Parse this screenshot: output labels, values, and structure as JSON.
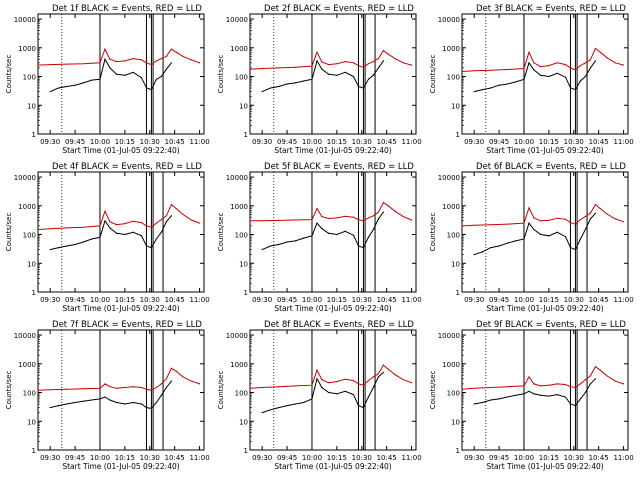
{
  "colors": {
    "events": "#000000",
    "lld": "#cc0000",
    "frame": "#000000"
  },
  "time_axis_ticks": [
    "09:30",
    "09:45",
    "10:00",
    "10:15",
    "10:30",
    "10:45",
    "11:00"
  ],
  "y_axis_ticks": [
    "1",
    "10",
    "100",
    "1000",
    "10000"
  ],
  "chart_data": [
    {
      "type": "line",
      "title": "Det 1f BLACK = Events, RED = LLD",
      "xlabel": "Start Time (01-Jul-05 09:22:40)",
      "ylabel": "Counts/sec",
      "yscale": "log",
      "ylim": [
        1,
        15000
      ],
      "xlim": [
        "09:22:40",
        "11:02:40"
      ],
      "series": [
        {
          "name": "Events",
          "color": "#000000",
          "x": [
            "09:30",
            "09:35",
            "09:40",
            "09:45",
            "09:50",
            "09:55",
            "10:00",
            "10:03",
            "10:06",
            "10:10",
            "10:15",
            "10:20",
            "10:25",
            "10:28",
            "10:31",
            "10:34",
            "10:37",
            "10:40",
            "10:43"
          ],
          "values": [
            30,
            40,
            45,
            50,
            60,
            75,
            80,
            400,
            200,
            120,
            110,
            140,
            90,
            40,
            35,
            80,
            100,
            180,
            300
          ]
        },
        {
          "name": "LLD",
          "color": "#cc0000",
          "x": [
            "09:22:40",
            "09:30",
            "09:40",
            "09:50",
            "10:00",
            "10:03",
            "10:06",
            "10:10",
            "10:15",
            "10:20",
            "10:25",
            "10:28",
            "10:31",
            "10:34",
            "10:37",
            "10:40",
            "10:43",
            "10:46",
            "10:50",
            "10:55",
            "11:00"
          ],
          "values": [
            250,
            260,
            270,
            280,
            300,
            900,
            400,
            330,
            350,
            420,
            380,
            300,
            260,
            350,
            420,
            500,
            900,
            700,
            500,
            380,
            300
          ]
        }
      ]
    },
    {
      "type": "line",
      "title": "Det 2f BLACK = Events, RED = LLD",
      "xlabel": "Start Time (01-Jul-05 09:22:40)",
      "ylabel": "Counts/sec",
      "yscale": "log",
      "ylim": [
        1,
        15000
      ],
      "xlim": [
        "09:22:40",
        "11:02:40"
      ],
      "series": [
        {
          "name": "Events",
          "color": "#000000",
          "x": [
            "09:30",
            "09:35",
            "09:40",
            "09:45",
            "09:50",
            "09:55",
            "10:00",
            "10:03",
            "10:06",
            "10:10",
            "10:15",
            "10:20",
            "10:25",
            "10:28",
            "10:31",
            "10:34",
            "10:37",
            "10:40",
            "10:43"
          ],
          "values": [
            30,
            40,
            45,
            55,
            60,
            70,
            80,
            350,
            180,
            120,
            110,
            140,
            100,
            45,
            40,
            80,
            110,
            200,
            350
          ]
        },
        {
          "name": "LLD",
          "color": "#cc0000",
          "x": [
            "09:22:40",
            "09:30",
            "09:40",
            "09:50",
            "10:00",
            "10:03",
            "10:06",
            "10:10",
            "10:15",
            "10:20",
            "10:25",
            "10:28",
            "10:31",
            "10:34",
            "10:37",
            "10:40",
            "10:43",
            "10:46",
            "10:50",
            "10:55",
            "11:00"
          ],
          "values": [
            180,
            190,
            200,
            210,
            230,
            700,
            320,
            260,
            280,
            330,
            300,
            240,
            210,
            280,
            330,
            420,
            800,
            600,
            420,
            300,
            250
          ]
        }
      ]
    },
    {
      "type": "line",
      "title": "Det 3f BLACK = Events, RED = LLD",
      "xlabel": "Start Time (01-Jul-05 09:22:40)",
      "ylabel": "Counts/sec",
      "yscale": "log",
      "ylim": [
        1,
        15000
      ],
      "xlim": [
        "09:22:40",
        "11:02:40"
      ],
      "series": [
        {
          "name": "Events",
          "color": "#000000",
          "x": [
            "09:30",
            "09:35",
            "09:40",
            "09:45",
            "09:50",
            "09:55",
            "10:00",
            "10:03",
            "10:06",
            "10:10",
            "10:15",
            "10:20",
            "10:25",
            "10:28",
            "10:31",
            "10:34",
            "10:37",
            "10:40",
            "10:43"
          ],
          "values": [
            30,
            35,
            40,
            50,
            55,
            65,
            80,
            300,
            170,
            110,
            100,
            130,
            95,
            40,
            35,
            70,
            100,
            200,
            350
          ]
        },
        {
          "name": "LLD",
          "color": "#cc0000",
          "x": [
            "09:22:40",
            "09:30",
            "09:40",
            "09:50",
            "10:00",
            "10:03",
            "10:06",
            "10:10",
            "10:15",
            "10:20",
            "10:25",
            "10:28",
            "10:31",
            "10:34",
            "10:37",
            "10:40",
            "10:43",
            "10:46",
            "10:50",
            "10:55",
            "11:00"
          ],
          "values": [
            150,
            160,
            165,
            175,
            190,
            700,
            300,
            220,
            240,
            300,
            260,
            200,
            170,
            240,
            300,
            380,
            950,
            700,
            450,
            300,
            250
          ]
        }
      ]
    },
    {
      "type": "line",
      "title": "Det 4f BLACK = Events, RED = LLD",
      "xlabel": "Start Time (01-Jul-05 09:22:40)",
      "ylabel": "Counts/sec",
      "yscale": "log",
      "ylim": [
        1,
        15000
      ],
      "xlim": [
        "09:22:40",
        "11:02:40"
      ],
      "series": [
        {
          "name": "Events",
          "color": "#000000",
          "x": [
            "09:30",
            "09:35",
            "09:40",
            "09:45",
            "09:50",
            "09:55",
            "10:00",
            "10:03",
            "10:06",
            "10:10",
            "10:15",
            "10:20",
            "10:25",
            "10:28",
            "10:31",
            "10:34",
            "10:37",
            "10:40",
            "10:43"
          ],
          "values": [
            30,
            35,
            40,
            45,
            55,
            70,
            80,
            300,
            170,
            110,
            100,
            120,
            90,
            40,
            35,
            70,
            120,
            280,
            450
          ]
        },
        {
          "name": "LLD",
          "color": "#cc0000",
          "x": [
            "09:22:40",
            "09:30",
            "09:40",
            "09:50",
            "10:00",
            "10:03",
            "10:06",
            "10:10",
            "10:15",
            "10:20",
            "10:25",
            "10:28",
            "10:31",
            "10:34",
            "10:37",
            "10:40",
            "10:43",
            "10:46",
            "10:50",
            "10:55",
            "11:00"
          ],
          "values": [
            150,
            160,
            170,
            180,
            200,
            650,
            280,
            220,
            240,
            290,
            260,
            200,
            180,
            250,
            330,
            450,
            1100,
            800,
            500,
            320,
            250
          ]
        }
      ]
    },
    {
      "type": "line",
      "title": "Det 5f BLACK = Events, RED = LLD",
      "xlabel": "Start Time (01-Jul-05 09:22:40)",
      "ylabel": "Counts/sec",
      "yscale": "log",
      "ylim": [
        1,
        15000
      ],
      "xlim": [
        "09:22:40",
        "11:02:40"
      ],
      "series": [
        {
          "name": "Events",
          "color": "#000000",
          "x": [
            "09:30",
            "09:35",
            "09:40",
            "09:45",
            "09:50",
            "09:55",
            "10:00",
            "10:03",
            "10:06",
            "10:10",
            "10:15",
            "10:20",
            "10:25",
            "10:28",
            "10:31",
            "10:34",
            "10:37",
            "10:40",
            "10:43"
          ],
          "values": [
            30,
            40,
            45,
            55,
            60,
            75,
            90,
            250,
            160,
            110,
            100,
            130,
            95,
            40,
            35,
            80,
            150,
            350,
            600
          ]
        },
        {
          "name": "LLD",
          "color": "#cc0000",
          "x": [
            "09:22:40",
            "09:30",
            "09:40",
            "09:50",
            "10:00",
            "10:03",
            "10:06",
            "10:10",
            "10:15",
            "10:20",
            "10:25",
            "10:28",
            "10:31",
            "10:34",
            "10:37",
            "10:40",
            "10:43",
            "10:46",
            "10:50",
            "10:55",
            "11:00"
          ],
          "values": [
            300,
            300,
            310,
            320,
            330,
            800,
            420,
            360,
            380,
            430,
            400,
            330,
            300,
            380,
            450,
            600,
            1300,
            1000,
            650,
            420,
            320
          ]
        }
      ]
    },
    {
      "type": "line",
      "title": "Det 6f BLACK = Events, RED = LLD",
      "xlabel": "Start Time (01-Jul-05 09:22:40)",
      "ylabel": "Counts/sec",
      "yscale": "log",
      "ylim": [
        1,
        15000
      ],
      "xlim": [
        "09:22:40",
        "11:02:40"
      ],
      "series": [
        {
          "name": "Events",
          "color": "#000000",
          "x": [
            "09:30",
            "09:35",
            "09:40",
            "09:45",
            "09:50",
            "09:55",
            "10:00",
            "10:03",
            "10:06",
            "10:10",
            "10:15",
            "10:20",
            "10:25",
            "10:28",
            "10:31",
            "10:34",
            "10:37",
            "10:40",
            "10:43"
          ],
          "values": [
            20,
            25,
            35,
            40,
            50,
            60,
            70,
            250,
            150,
            100,
            90,
            120,
            85,
            35,
            30,
            70,
            150,
            350,
            550
          ]
        },
        {
          "name": "LLD",
          "color": "#cc0000",
          "x": [
            "09:22:40",
            "09:30",
            "09:40",
            "09:50",
            "10:00",
            "10:03",
            "10:06",
            "10:10",
            "10:15",
            "10:20",
            "10:25",
            "10:28",
            "10:31",
            "10:34",
            "10:37",
            "10:40",
            "10:43",
            "10:46",
            "10:50",
            "10:55",
            "11:00"
          ],
          "values": [
            200,
            210,
            220,
            230,
            250,
            850,
            380,
            300,
            310,
            370,
            340,
            260,
            230,
            330,
            420,
            550,
            1100,
            800,
            520,
            350,
            280
          ]
        }
      ]
    },
    {
      "type": "line",
      "title": "Det 7f BLACK = Events, RED = LLD",
      "xlabel": "Start Time (01-Jul-05 09:22:40)",
      "ylabel": "Counts/sec",
      "yscale": "log",
      "ylim": [
        1,
        15000
      ],
      "xlim": [
        "09:22:40",
        "11:02:40"
      ],
      "series": [
        {
          "name": "Events",
          "color": "#000000",
          "x": [
            "09:30",
            "09:35",
            "09:40",
            "09:45",
            "09:50",
            "09:55",
            "10:00",
            "10:03",
            "10:06",
            "10:10",
            "10:15",
            "10:20",
            "10:25",
            "10:28",
            "10:31",
            "10:34",
            "10:37",
            "10:40",
            "10:43"
          ],
          "values": [
            30,
            35,
            40,
            45,
            50,
            55,
            60,
            70,
            55,
            45,
            40,
            45,
            40,
            30,
            28,
            45,
            80,
            150,
            250
          ]
        },
        {
          "name": "LLD",
          "color": "#cc0000",
          "x": [
            "09:22:40",
            "09:30",
            "09:40",
            "09:50",
            "10:00",
            "10:03",
            "10:06",
            "10:10",
            "10:15",
            "10:20",
            "10:25",
            "10:28",
            "10:31",
            "10:34",
            "10:37",
            "10:40",
            "10:43",
            "10:46",
            "10:50",
            "10:55",
            "11:00"
          ],
          "values": [
            120,
            125,
            130,
            135,
            140,
            200,
            160,
            140,
            150,
            160,
            150,
            130,
            120,
            150,
            200,
            300,
            700,
            550,
            350,
            250,
            200
          ]
        }
      ]
    },
    {
      "type": "line",
      "title": "Det 8f BLACK = Events, RED = LLD",
      "xlabel": "Start Time (01-Jul-05 09:22:40)",
      "ylabel": "Counts/sec",
      "yscale": "log",
      "ylim": [
        1,
        15000
      ],
      "xlim": [
        "09:22:40",
        "11:02:40"
      ],
      "series": [
        {
          "name": "Events",
          "color": "#000000",
          "x": [
            "09:30",
            "09:35",
            "09:40",
            "09:45",
            "09:50",
            "09:55",
            "10:00",
            "10:03",
            "10:06",
            "10:10",
            "10:15",
            "10:20",
            "10:25",
            "10:28",
            "10:31",
            "10:34",
            "10:37",
            "10:40",
            "10:43"
          ],
          "values": [
            20,
            25,
            30,
            35,
            40,
            45,
            60,
            300,
            150,
            100,
            90,
            110,
            85,
            35,
            30,
            70,
            150,
            350,
            500
          ]
        },
        {
          "name": "LLD",
          "color": "#cc0000",
          "x": [
            "09:22:40",
            "09:30",
            "09:40",
            "09:50",
            "10:00",
            "10:03",
            "10:06",
            "10:10",
            "10:15",
            "10:20",
            "10:25",
            "10:28",
            "10:31",
            "10:34",
            "10:37",
            "10:40",
            "10:43",
            "10:46",
            "10:50",
            "10:55",
            "11:00"
          ],
          "values": [
            140,
            150,
            160,
            170,
            180,
            600,
            280,
            220,
            240,
            290,
            260,
            200,
            180,
            260,
            350,
            450,
            900,
            650,
            420,
            280,
            220
          ]
        }
      ]
    },
    {
      "type": "line",
      "title": "Det 9f BLACK = Events, RED = LLD",
      "xlabel": "Start Time (01-Jul-05 09:22:40)",
      "ylabel": "Counts/sec",
      "yscale": "log",
      "ylim": [
        1,
        15000
      ],
      "xlim": [
        "09:22:40",
        "11:02:40"
      ],
      "series": [
        {
          "name": "Events",
          "color": "#000000",
          "x": [
            "09:30",
            "09:35",
            "09:40",
            "09:45",
            "09:50",
            "09:55",
            "10:00",
            "10:03",
            "10:06",
            "10:10",
            "10:15",
            "10:20",
            "10:25",
            "10:28",
            "10:31",
            "10:34",
            "10:37",
            "10:40",
            "10:43"
          ],
          "values": [
            40,
            45,
            55,
            60,
            70,
            80,
            90,
            110,
            90,
            80,
            75,
            85,
            70,
            40,
            35,
            60,
            100,
            200,
            300
          ]
        },
        {
          "name": "LLD",
          "color": "#cc0000",
          "x": [
            "09:22:40",
            "09:30",
            "09:40",
            "09:50",
            "10:00",
            "10:03",
            "10:06",
            "10:10",
            "10:15",
            "10:20",
            "10:25",
            "10:28",
            "10:31",
            "10:34",
            "10:37",
            "10:40",
            "10:43",
            "10:46",
            "10:50",
            "10:55",
            "11:00"
          ],
          "values": [
            130,
            140,
            150,
            160,
            170,
            350,
            200,
            170,
            180,
            200,
            190,
            160,
            150,
            200,
            280,
            380,
            800,
            600,
            380,
            250,
            200
          ]
        }
      ]
    }
  ]
}
